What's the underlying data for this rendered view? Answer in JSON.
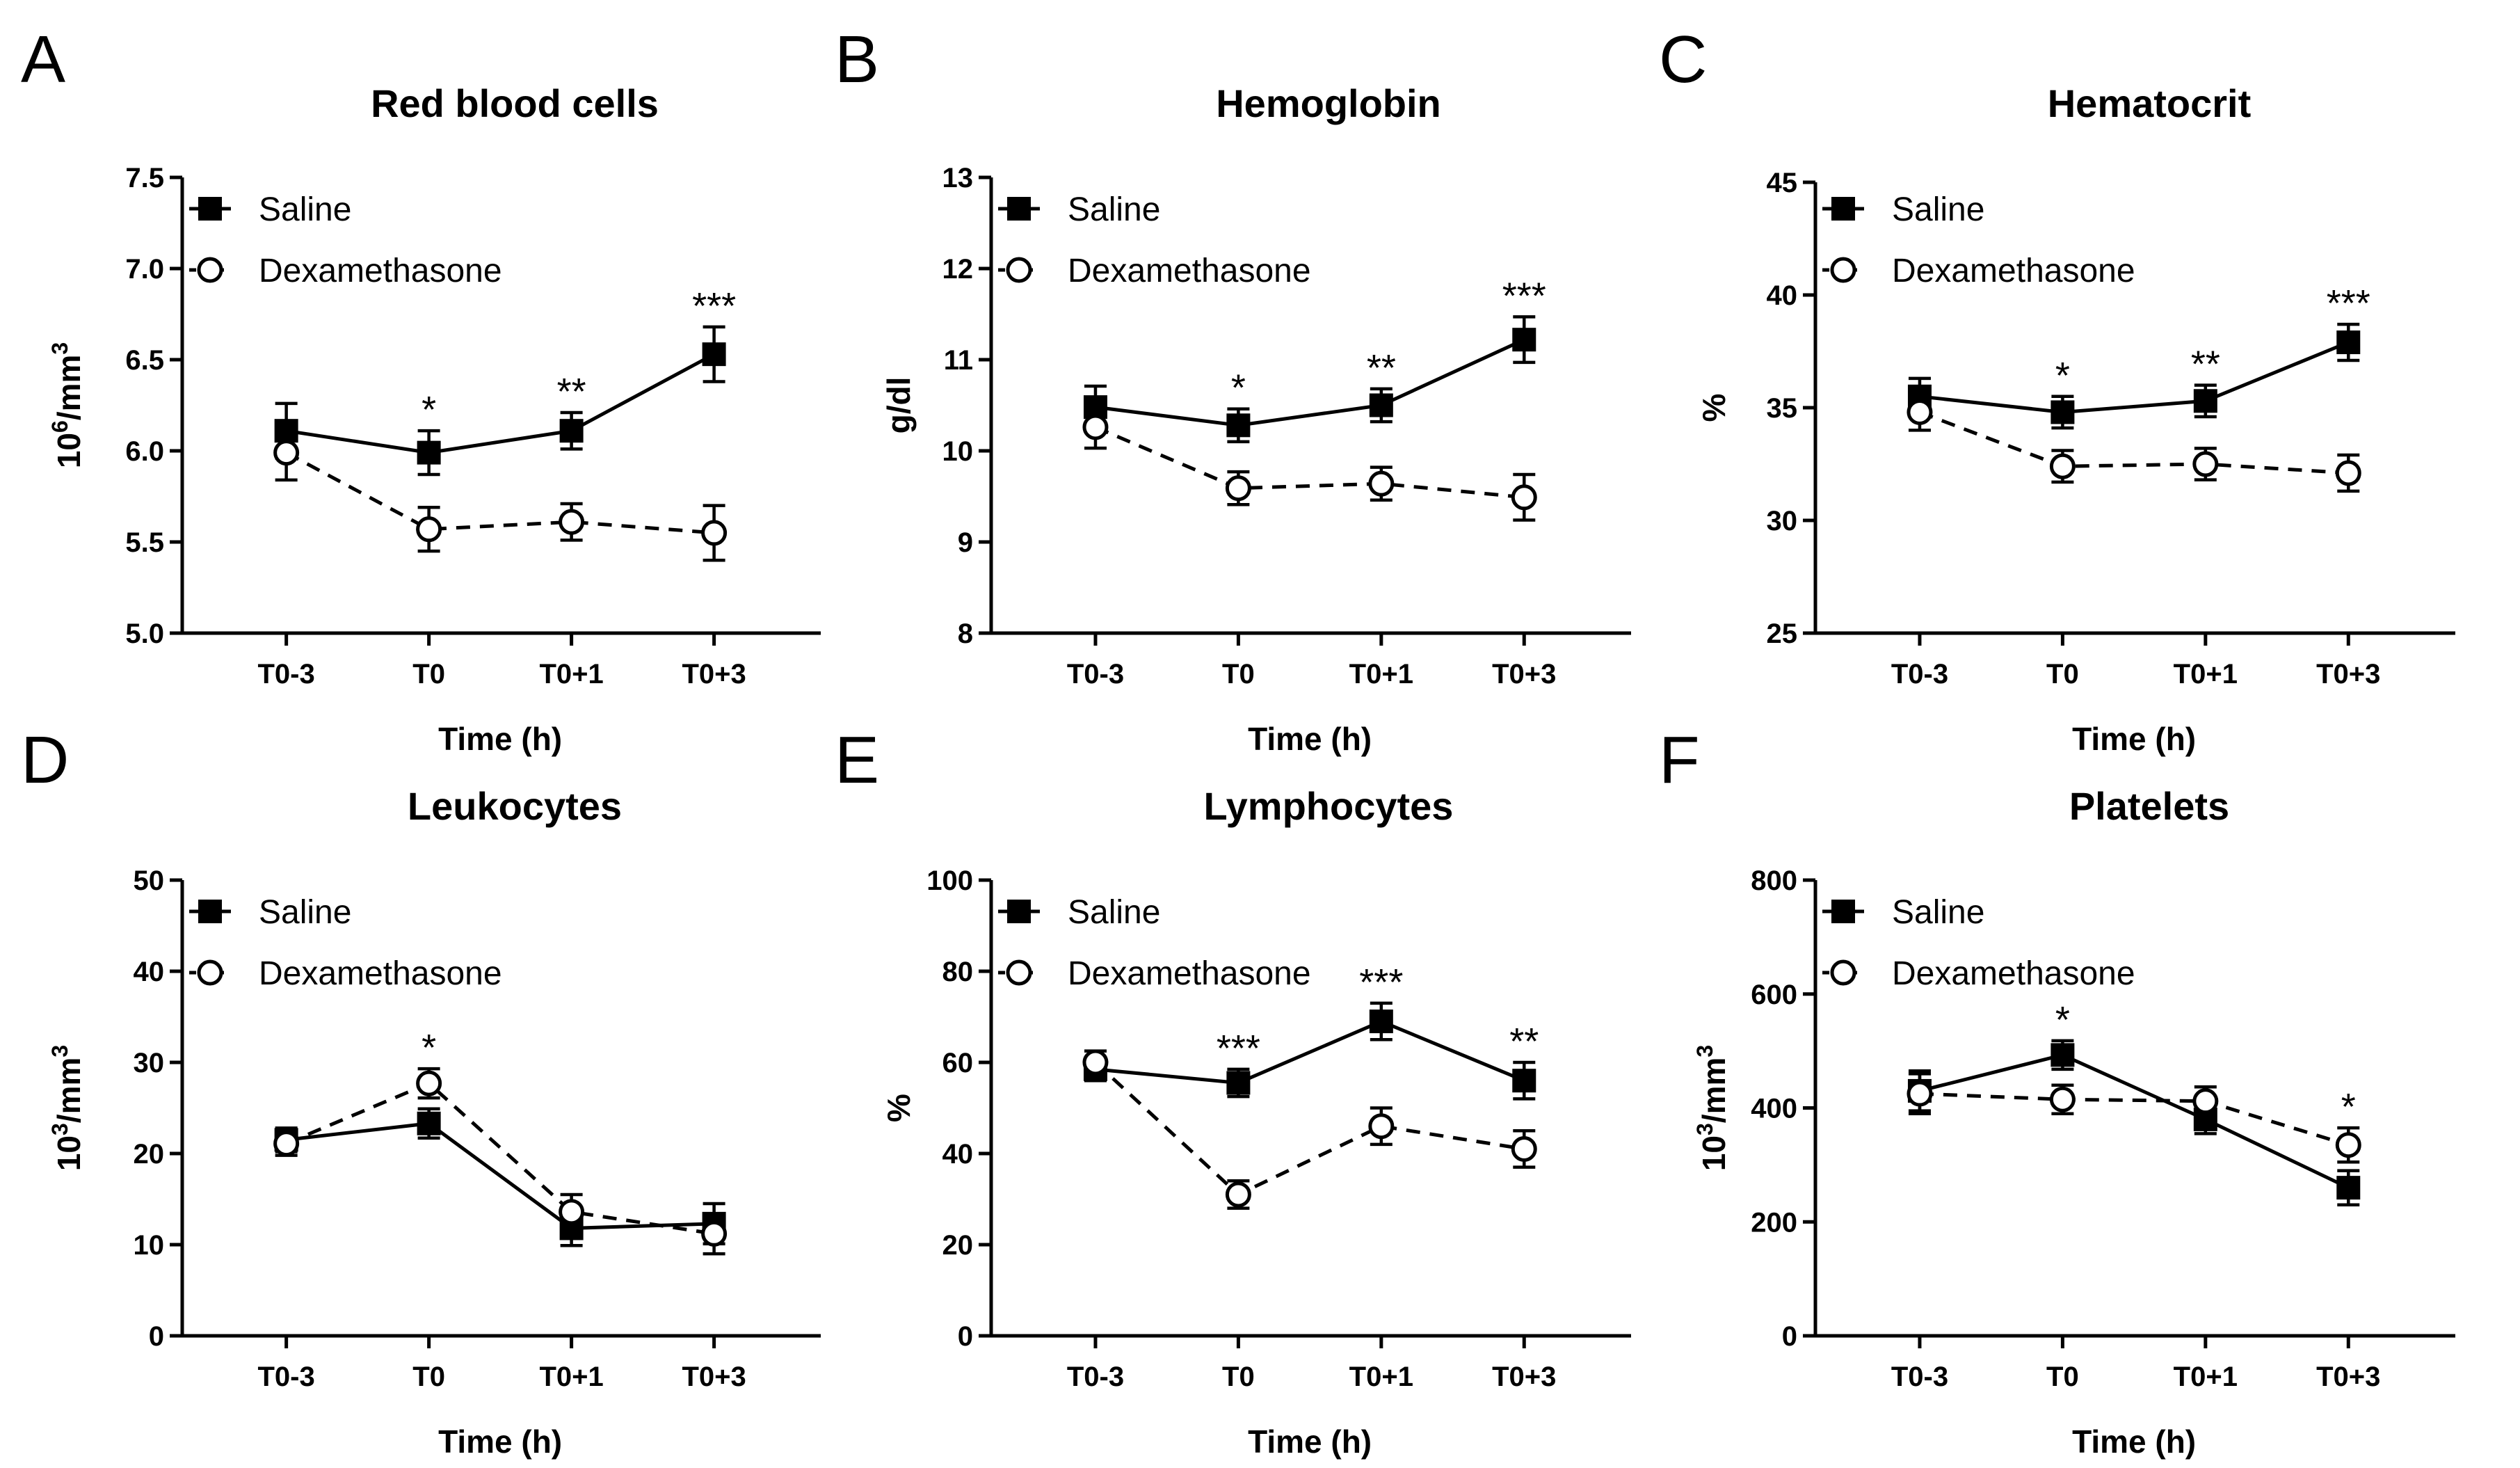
{
  "chart_data": [
    {
      "type": "line",
      "panel": "A",
      "title": "Red blood cells",
      "ylabel": "10⁶/mm³",
      "ylabel_base": "10",
      "ylabel_sup1": "6",
      "ylabel_mid": "/mm",
      "ylabel_sup2": "3",
      "xlabel": "Time (h)",
      "categories": [
        "T0-3",
        "T0",
        "T0+1",
        "T0+3"
      ],
      "ylim": [
        5.0,
        7.5
      ],
      "yticks": [
        "5.0",
        "5.5",
        "6.0",
        "6.5",
        "7.0",
        "7.5"
      ],
      "series": [
        {
          "name": "Saline",
          "marker": "filled-square",
          "style": "solid",
          "values": [
            6.11,
            5.99,
            6.11,
            6.53
          ],
          "errors": [
            0.15,
            0.12,
            0.1,
            0.15
          ]
        },
        {
          "name": "Dexamethasone",
          "marker": "open-circle",
          "style": "dashed",
          "values": [
            5.99,
            5.57,
            5.61,
            5.55
          ],
          "errors": [
            0.15,
            0.12,
            0.1,
            0.15
          ]
        }
      ],
      "annotations": [
        "",
        "*",
        "**",
        "***"
      ]
    },
    {
      "type": "line",
      "panel": "B",
      "title": "Hemoglobin",
      "ylabel": "g/dl",
      "ylabel_base": "g/dl",
      "ylabel_sup1": "",
      "ylabel_mid": "",
      "ylabel_sup2": "",
      "xlabel": "Time (h)",
      "categories": [
        "T0-3",
        "T0",
        "T0+1",
        "T0+3"
      ],
      "ylim": [
        8,
        13
      ],
      "yticks": [
        "8",
        "9",
        "10",
        "11",
        "12",
        "13"
      ],
      "series": [
        {
          "name": "Saline",
          "marker": "filled-square",
          "style": "solid",
          "values": [
            10.48,
            10.28,
            10.5,
            11.22
          ],
          "errors": [
            0.23,
            0.18,
            0.18,
            0.25
          ]
        },
        {
          "name": "Dexamethasone",
          "marker": "open-circle",
          "style": "dashed",
          "values": [
            10.26,
            9.59,
            9.64,
            9.49
          ],
          "errors": [
            0.23,
            0.18,
            0.18,
            0.25
          ]
        }
      ],
      "annotations": [
        "",
        "*",
        "**",
        "***"
      ]
    },
    {
      "type": "line",
      "panel": "C",
      "title": "Hematocrit",
      "ylabel": "%",
      "ylabel_base": "%",
      "ylabel_sup1": "",
      "ylabel_mid": "",
      "ylabel_sup2": "",
      "xlabel": "Time (h)",
      "categories": [
        "T0-3",
        "T0",
        "T0+1",
        "T0+3"
      ],
      "ylim": [
        25,
        45
      ],
      "yticks": [
        "25",
        "30",
        "35",
        "40",
        "45"
      ],
      "series": [
        {
          "name": "Saline",
          "marker": "filled-square",
          "style": "solid",
          "values": [
            35.5,
            34.8,
            35.3,
            37.9
          ],
          "errors": [
            0.8,
            0.7,
            0.7,
            0.8
          ]
        },
        {
          "name": "Dexamethasone",
          "marker": "open-circle",
          "style": "dashed",
          "values": [
            34.8,
            32.4,
            32.5,
            32.1
          ],
          "errors": [
            0.8,
            0.7,
            0.7,
            0.8
          ]
        }
      ],
      "annotations": [
        "",
        "*",
        "**",
        "***"
      ]
    },
    {
      "type": "line",
      "panel": "D",
      "title": "Leukocytes",
      "ylabel": "10³/mm³",
      "ylabel_base": "10",
      "ylabel_sup1": "3",
      "ylabel_mid": "/mm",
      "ylabel_sup2": "3",
      "xlabel": "Time (h)",
      "categories": [
        "T0-3",
        "T0",
        "T0+1",
        "T0+3"
      ],
      "ylim": [
        0,
        50
      ],
      "yticks": [
        "0",
        "10",
        "20",
        "30",
        "40",
        "50"
      ],
      "series": [
        {
          "name": "Saline",
          "marker": "filled-square",
          "style": "solid",
          "values": [
            21.5,
            23.3,
            11.8,
            12.3
          ],
          "errors": [
            1.3,
            1.6,
            1.9,
            2.2
          ]
        },
        {
          "name": "Dexamethasone",
          "marker": "open-circle",
          "style": "dashed",
          "values": [
            21.1,
            27.7,
            13.6,
            11.2
          ],
          "errors": [
            1.3,
            1.6,
            1.9,
            2.2
          ]
        }
      ],
      "annotations": [
        "",
        "*",
        "",
        ""
      ]
    },
    {
      "type": "line",
      "panel": "E",
      "title": "Lymphocytes",
      "ylabel": "%",
      "ylabel_base": "%",
      "ylabel_sup1": "",
      "ylabel_mid": "",
      "ylabel_sup2": "",
      "xlabel": "Time (h)",
      "categories": [
        "T0-3",
        "T0",
        "T0+1",
        "T0+3"
      ],
      "ylim": [
        0,
        100
      ],
      "yticks": [
        "0",
        "20",
        "40",
        "60",
        "80",
        "100"
      ],
      "series": [
        {
          "name": "Saline",
          "marker": "filled-square",
          "style": "solid",
          "values": [
            58.5,
            55.5,
            69.0,
            56.0
          ],
          "errors": [
            2.5,
            3.0,
            4.0,
            4.0
          ]
        },
        {
          "name": "Dexamethasone",
          "marker": "open-circle",
          "style": "dashed",
          "values": [
            60.0,
            31.0,
            46.0,
            41.0
          ],
          "errors": [
            2.5,
            3.0,
            4.0,
            4.0
          ]
        }
      ],
      "annotations": [
        "",
        "***",
        "***",
        "**"
      ]
    },
    {
      "type": "line",
      "panel": "F",
      "title": "Platelets",
      "ylabel": "10³/mm³",
      "ylabel_base": "10",
      "ylabel_sup1": "3",
      "ylabel_mid": "/mm",
      "ylabel_sup2": "3",
      "xlabel": "Time (h)",
      "categories": [
        "T0-3",
        "T0",
        "T0+1",
        "T0+3"
      ],
      "ylim": [
        0,
        800
      ],
      "yticks": [
        "0",
        "200",
        "400",
        "600",
        "800"
      ],
      "series": [
        {
          "name": "Saline",
          "marker": "filled-square",
          "style": "solid",
          "values": [
            430,
            493,
            380,
            260
          ],
          "errors": [
            35,
            25,
            25,
            30
          ]
        },
        {
          "name": "Dexamethasone",
          "marker": "open-circle",
          "style": "dashed",
          "values": [
            425,
            415,
            412,
            335
          ],
          "errors": [
            35,
            25,
            25,
            30
          ]
        }
      ],
      "annotations": [
        "",
        "*",
        "",
        "*"
      ]
    }
  ]
}
